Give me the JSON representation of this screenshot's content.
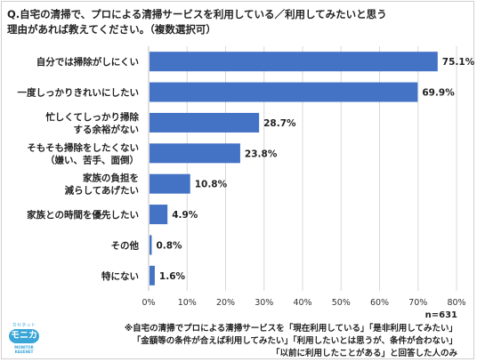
{
  "question_line1": "Q.自宅の清掃で、プロによる清掃サービスを利用している／利用してみたいと思う",
  "question_line2": "理由があれば教えてください。（複数選択可）",
  "n_label": "n=631",
  "notes": [
    "※自宅の清掃でプロによる清掃サービスを「現在利用している」「是非利用してみたい」",
    "「金額等の条件が合えば利用してみたい」「利用したいとは思うが、条件が合わない」",
    "「以前に利用したことがある」と回答した人のみ"
  ],
  "logo": {
    "top": "カセネット",
    "main": "モニカ",
    "bottom": "MONITOR KASENET"
  },
  "colors": {
    "bar": "#4472c4",
    "grid": "#d9d9d9",
    "axis": "#bfbfbf"
  },
  "chart_data": {
    "type": "bar",
    "orientation": "horizontal",
    "categories": [
      [
        "自分では掃除がしにくい"
      ],
      [
        "一度しっかりきれいにしたい"
      ],
      [
        "忙しくてしっかり掃除",
        "する余裕がない"
      ],
      [
        "そもそも掃除をしたくない",
        "（嫌い、苦手、面倒）"
      ],
      [
        "家族の負担を",
        "減らしてあげたい"
      ],
      [
        "家族との時間を優先したい"
      ],
      [
        "その他"
      ],
      [
        "特にない"
      ]
    ],
    "values": [
      75.1,
      69.9,
      28.7,
      23.8,
      10.8,
      4.9,
      0.8,
      1.6
    ],
    "value_labels": [
      "75.1%",
      "69.9%",
      "28.7%",
      "23.8%",
      "10.8%",
      "4.9%",
      "0.8%",
      "1.6%"
    ],
    "xlim": [
      0,
      80
    ],
    "x_ticks": [
      0,
      10,
      20,
      30,
      40,
      50,
      60,
      70,
      80
    ],
    "x_tick_labels": [
      "0%",
      "10%",
      "20%",
      "30%",
      "40%",
      "50%",
      "60%",
      "70%",
      "80%"
    ],
    "grid": true
  }
}
